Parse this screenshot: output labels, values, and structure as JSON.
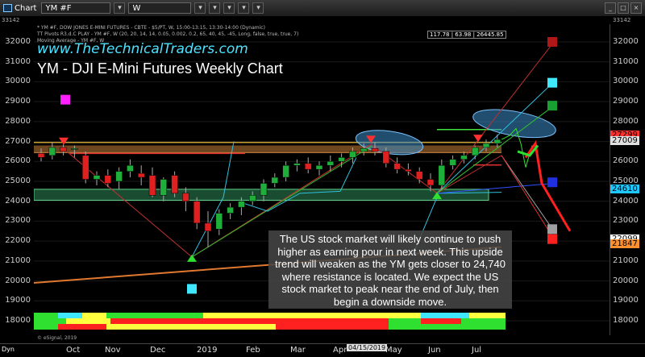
{
  "window": {
    "title": "Chart",
    "symbol": "YM #F",
    "interval": "W"
  },
  "toolbar": {
    "btn1": "▾",
    "btn2": "▾",
    "btn3": "▾",
    "btn4": "▾",
    "btn5": "▾",
    "btn6": "▾"
  },
  "legend": {
    "line1": "* YM #F, DOW JONES E-MINI FUTURES - CBTE - $5/PT, W, 15:00-13:15, 13:30-14:00 (Dynamic)",
    "line2": "TT Pivots R3.d.C PLAY - YM #F, W (20, 20, 14, 14, 0.05, 0.002, 0.2, 65, 40, 45, -45, Long, false, true, true, 7)",
    "line3": "Moving Average - YM #F, W"
  },
  "brand": "www.TheTechnicalTraders.com",
  "title": "YM - DJI E-Mini Futures Weekly Chart",
  "ohlc_box": "117.78 | 63.98 | 26445.85",
  "top_left_val": "33142",
  "top_right_val": "33142",
  "y_ticks": [
    "32000",
    "31000",
    "30000",
    "29000",
    "28000",
    "27000",
    "26000",
    "25000",
    "24000",
    "23000",
    "22000",
    "21000",
    "20000",
    "19000",
    "18000"
  ],
  "price_tags": [
    {
      "text": "27299",
      "color": "#ff3030"
    },
    {
      "text": "27009",
      "color": "#e0e0e0"
    },
    {
      "text": "24610",
      "color": "#1ec8ff"
    },
    {
      "text": "22099",
      "color": "#ffffff"
    },
    {
      "text": "21847",
      "color": "#ff9030"
    }
  ],
  "x_labels": [
    "Oct",
    "Nov",
    "Dec",
    "2019",
    "Feb",
    "Mar",
    "Apr",
    "May",
    "Jun",
    "Jul"
  ],
  "x_date_box": "04/15/2019",
  "dyn_label": "Dyn",
  "esignal": "© eSignal, 2019",
  "note": "The US stock market will likely continue to push higher as earning pour in next week. This upside trend will weaken as the YM gets closer to 24,740 where resistance is located. We expect the US stock market to peak near the end of July, then begin a downside move.",
  "colors": {
    "up": "#1fae3a",
    "down": "#e01f1f",
    "ellipse": "#4aa3d8",
    "zone": "#2e8b57",
    "resistance": "#c8823c"
  },
  "chart_data": {
    "type": "candlestick",
    "ylim": [
      17500,
      33142
    ],
    "candles": [
      {
        "o": 26400,
        "h": 26650,
        "l": 26000,
        "c": 26200
      },
      {
        "o": 26300,
        "h": 26950,
        "l": 26100,
        "c": 26700
      },
      {
        "o": 26700,
        "h": 26850,
        "l": 26300,
        "c": 26500
      },
      {
        "o": 26600,
        "h": 26800,
        "l": 26200,
        "c": 26650
      },
      {
        "o": 26300,
        "h": 26500,
        "l": 24900,
        "c": 25100
      },
      {
        "o": 25100,
        "h": 25500,
        "l": 24800,
        "c": 25300
      },
      {
        "o": 25300,
        "h": 25600,
        "l": 24700,
        "c": 24900
      },
      {
        "o": 25000,
        "h": 25700,
        "l": 24600,
        "c": 25500
      },
      {
        "o": 25500,
        "h": 26100,
        "l": 25200,
        "c": 25800
      },
      {
        "o": 25400,
        "h": 25800,
        "l": 24800,
        "c": 25200
      },
      {
        "o": 25300,
        "h": 25700,
        "l": 24200,
        "c": 24300
      },
      {
        "o": 24300,
        "h": 25200,
        "l": 24000,
        "c": 25100
      },
      {
        "o": 25300,
        "h": 25500,
        "l": 24200,
        "c": 24400
      },
      {
        "o": 24400,
        "h": 24700,
        "l": 23500,
        "c": 24000
      },
      {
        "o": 24000,
        "h": 24200,
        "l": 22600,
        "c": 22900
      },
      {
        "o": 22900,
        "h": 23500,
        "l": 21700,
        "c": 22500
      },
      {
        "o": 22600,
        "h": 23600,
        "l": 22300,
        "c": 23400
      },
      {
        "o": 23400,
        "h": 23900,
        "l": 23100,
        "c": 23700
      },
      {
        "o": 23700,
        "h": 24200,
        "l": 23300,
        "c": 24000
      },
      {
        "o": 24000,
        "h": 24500,
        "l": 23800,
        "c": 24300
      },
      {
        "o": 24300,
        "h": 25100,
        "l": 24000,
        "c": 24900
      },
      {
        "o": 24900,
        "h": 25400,
        "l": 24700,
        "c": 25200
      },
      {
        "o": 25200,
        "h": 26000,
        "l": 25000,
        "c": 25800
      },
      {
        "o": 25800,
        "h": 26100,
        "l": 25500,
        "c": 25900
      },
      {
        "o": 25900,
        "h": 26200,
        "l": 25400,
        "c": 25600
      },
      {
        "o": 25600,
        "h": 26000,
        "l": 25300,
        "c": 25800
      },
      {
        "o": 25800,
        "h": 26300,
        "l": 25500,
        "c": 26000
      },
      {
        "o": 26000,
        "h": 26400,
        "l": 25700,
        "c": 26200
      },
      {
        "o": 26200,
        "h": 26700,
        "l": 25900,
        "c": 26500
      },
      {
        "o": 26500,
        "h": 26900,
        "l": 26300,
        "c": 26650
      },
      {
        "o": 26650,
        "h": 26950,
        "l": 26300,
        "c": 26500
      },
      {
        "o": 26500,
        "h": 26700,
        "l": 25700,
        "c": 25900
      },
      {
        "o": 25900,
        "h": 26200,
        "l": 25400,
        "c": 25600
      },
      {
        "o": 25600,
        "h": 25900,
        "l": 25300,
        "c": 25500
      },
      {
        "o": 25500,
        "h": 25700,
        "l": 24900,
        "c": 25100
      },
      {
        "o": 25100,
        "h": 25400,
        "l": 24500,
        "c": 24800
      },
      {
        "o": 24800,
        "h": 26100,
        "l": 24600,
        "c": 25800
      },
      {
        "o": 25800,
        "h": 26300,
        "l": 25600,
        "c": 26100
      },
      {
        "o": 26100,
        "h": 26500,
        "l": 25900,
        "c": 26300
      },
      {
        "o": 26300,
        "h": 26800,
        "l": 26100,
        "c": 26700
      },
      {
        "o": 26700,
        "h": 27100,
        "l": 26500,
        "c": 26900
      },
      {
        "o": 26900,
        "h": 27350,
        "l": 26700,
        "c": 27100
      }
    ]
  }
}
